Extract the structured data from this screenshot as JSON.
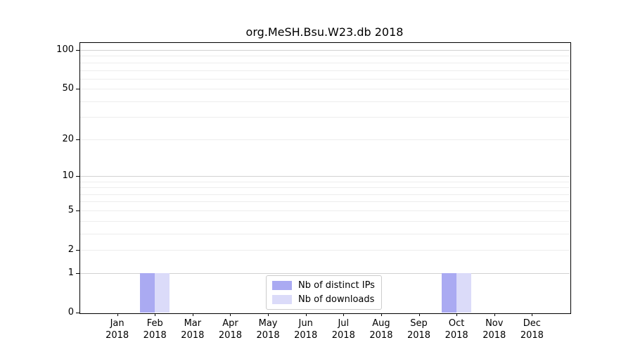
{
  "title": "org.MeSH.Bsu.W23.db 2018",
  "colors": {
    "distinct_ips": "#aaaaf2",
    "downloads": "#dbdbf9",
    "grid_major": "#d2d2d2",
    "grid_minor": "#ededed",
    "axis": "#000000",
    "legend_border": "#cccccc"
  },
  "legend": {
    "items": [
      {
        "label": "Nb of distinct IPs",
        "color_key": "distinct_ips"
      },
      {
        "label": "Nb of downloads",
        "color_key": "downloads"
      }
    ]
  },
  "y_axis": {
    "tick_values": [
      0,
      1,
      2,
      5,
      10,
      20,
      50,
      100
    ],
    "tick_labels": [
      "0",
      "1",
      "2",
      "5",
      "10",
      "20",
      "50",
      "100"
    ],
    "major_gridlines": [
      1,
      10,
      100
    ],
    "minor_gridlines": [
      2,
      3,
      4,
      5,
      6,
      7,
      8,
      9,
      20,
      30,
      40,
      50,
      60,
      70,
      80,
      90
    ]
  },
  "x_axis": {
    "months": [
      {
        "label": "Jan",
        "year": "2018"
      },
      {
        "label": "Feb",
        "year": "2018"
      },
      {
        "label": "Mar",
        "year": "2018"
      },
      {
        "label": "Apr",
        "year": "2018"
      },
      {
        "label": "May",
        "year": "2018"
      },
      {
        "label": "Jun",
        "year": "2018"
      },
      {
        "label": "Jul",
        "year": "2018"
      },
      {
        "label": "Aug",
        "year": "2018"
      },
      {
        "label": "Sep",
        "year": "2018"
      },
      {
        "label": "Oct",
        "year": "2018"
      },
      {
        "label": "Nov",
        "year": "2018"
      },
      {
        "label": "Dec",
        "year": "2018"
      }
    ]
  },
  "chart_data": {
    "type": "bar",
    "title": "org.MeSH.Bsu.W23.db 2018",
    "categories": [
      "Jan 2018",
      "Feb 2018",
      "Mar 2018",
      "Apr 2018",
      "May 2018",
      "Jun 2018",
      "Jul 2018",
      "Aug 2018",
      "Sep 2018",
      "Oct 2018",
      "Nov 2018",
      "Dec 2018"
    ],
    "series": [
      {
        "name": "Nb of distinct IPs",
        "values": [
          0,
          1,
          0,
          0,
          0,
          0,
          0,
          0,
          0,
          1,
          0,
          0
        ]
      },
      {
        "name": "Nb of downloads",
        "values": [
          0,
          1,
          0,
          0,
          0,
          0,
          0,
          0,
          0,
          1,
          0,
          0
        ]
      }
    ],
    "xlabel": "",
    "ylabel": "",
    "yscale": "log1p",
    "yticks": [
      0,
      1,
      2,
      5,
      10,
      20,
      50,
      100
    ],
    "ylim": [
      0,
      115
    ],
    "grid": true,
    "legend_position": "lower center"
  }
}
